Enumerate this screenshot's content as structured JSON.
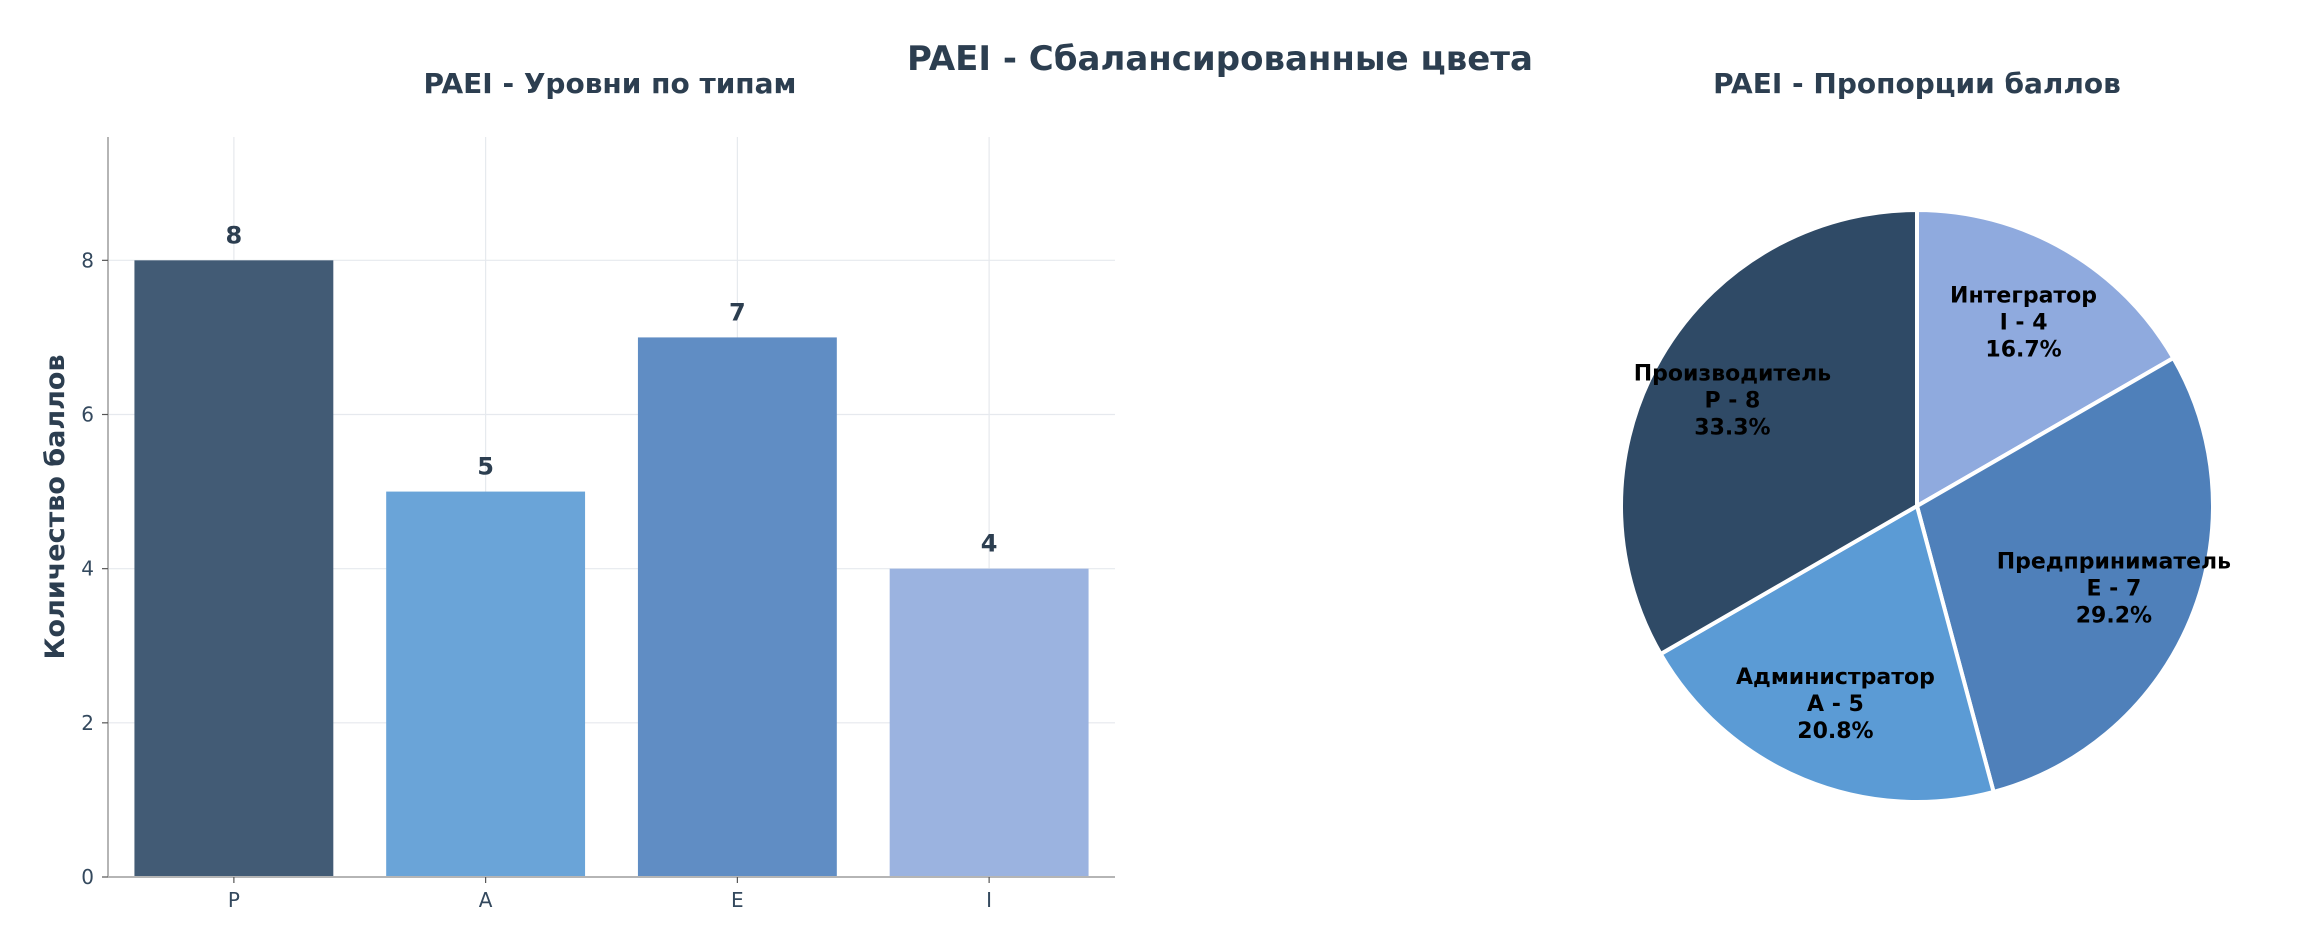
{
  "figure_title": "PAEI - Сбалансированные цвета",
  "chart_data": [
    {
      "type": "bar",
      "title": "PAEI - Уровни по типам",
      "xlabel": "",
      "ylabel": "Количество баллов",
      "categories": [
        "P",
        "A",
        "E",
        "I"
      ],
      "values": [
        8,
        5,
        7,
        4
      ],
      "value_labels": [
        "8",
        "5",
        "7",
        "4"
      ],
      "colors": [
        "#425b75",
        "#6aa4d8",
        "#608dc4",
        "#9bb3e0"
      ],
      "ylim": [
        0,
        9.6
      ],
      "yticks": [
        0,
        2,
        4,
        6,
        8
      ],
      "ytick_labels": [
        "0",
        "2",
        "4",
        "6",
        "8"
      ],
      "grid": true
    },
    {
      "type": "pie",
      "title": "PAEI - Пропорции баллов",
      "start_angle_deg": 90,
      "direction": "clockwise",
      "slices": [
        {
          "name": "Интегратор",
          "code": "I - 4",
          "value": 4,
          "pct": "16.7%",
          "color": "#8faade"
        },
        {
          "name": "Предприниматель",
          "code": "E - 7",
          "value": 7,
          "pct": "29.2%",
          "color": "#4f80ba"
        },
        {
          "name": "Администратор",
          "code": "A - 5",
          "value": 5,
          "pct": "20.8%",
          "color": "#5b9bd5"
        },
        {
          "name": "Производитель",
          "code": "P - 8",
          "value": 8,
          "pct": "33.3%",
          "color": "#2f4a66"
        }
      ]
    }
  ]
}
